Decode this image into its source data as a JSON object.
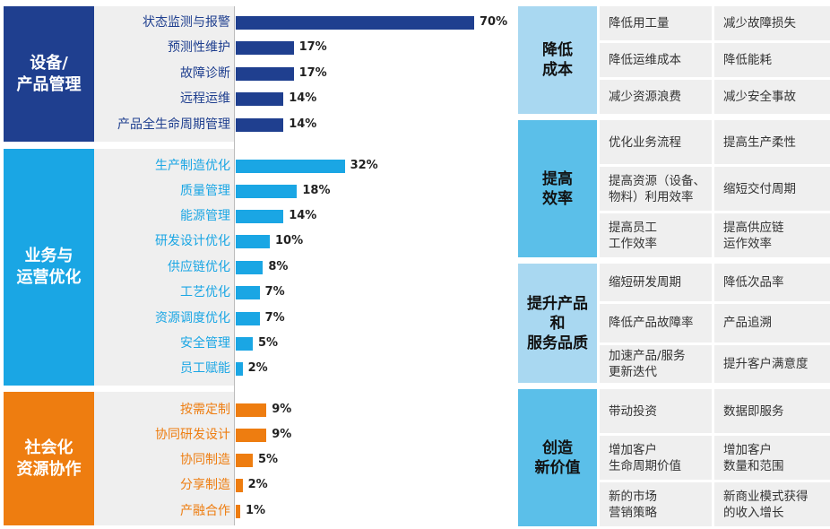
{
  "chart_data": {
    "type": "bar",
    "orientation": "horizontal",
    "groups": [
      {
        "name": "设备/\n产品管理",
        "color": "#1f3f8f",
        "items": [
          {
            "label": "状态监测与报警",
            "value": 70,
            "display": "70%"
          },
          {
            "label": "预测性维护",
            "value": 17,
            "display": "17%"
          },
          {
            "label": "故障诊断",
            "value": 17,
            "display": "17%"
          },
          {
            "label": "远程运维",
            "value": 14,
            "display": "14%"
          },
          {
            "label": "产品全生命周期管理",
            "value": 14,
            "display": "14%"
          }
        ]
      },
      {
        "name": "业务与\n运营优化",
        "color": "#1aa6e4",
        "items": [
          {
            "label": "生产制造优化",
            "value": 32,
            "display": "32%"
          },
          {
            "label": "质量管理",
            "value": 18,
            "display": "18%"
          },
          {
            "label": "能源管理",
            "value": 14,
            "display": "14%"
          },
          {
            "label": "研发设计优化",
            "value": 10,
            "display": "10%"
          },
          {
            "label": "供应链优化",
            "value": 8,
            "display": "8%"
          },
          {
            "label": "工艺优化",
            "value": 7,
            "display": "7%"
          },
          {
            "label": "资源调度优化",
            "value": 7,
            "display": "7%"
          },
          {
            "label": "安全管理",
            "value": 5,
            "display": "5%"
          },
          {
            "label": "员工赋能",
            "value": 2,
            "display": "2%"
          }
        ]
      },
      {
        "name": "社会化\n资源协作",
        "color": "#ee7d10",
        "items": [
          {
            "label": "按需定制",
            "value": 9,
            "display": "9%"
          },
          {
            "label": "协同研发设计",
            "value": 9,
            "display": "9%"
          },
          {
            "label": "协同制造",
            "value": 5,
            "display": "5%"
          },
          {
            "label": "分享制造",
            "value": 2,
            "display": "2%"
          },
          {
            "label": "产融合作",
            "value": 1,
            "display": "1%"
          }
        ]
      }
    ],
    "xlim": [
      0,
      70
    ]
  },
  "benefits": [
    {
      "title": "降低\n成本",
      "style": "light",
      "cells": [
        [
          "降低用工量",
          "减少故障损失"
        ],
        [
          "降低运维成本",
          "降低能耗"
        ],
        [
          "减少资源浪费",
          "减少安全事故"
        ]
      ]
    },
    {
      "title": "提高\n效率",
      "style": "dark",
      "cells": [
        [
          "优化业务流程",
          "提高生产柔性"
        ],
        [
          "提高资源（设备、\n物料）利用效率",
          "缩短交付周期"
        ],
        [
          "提高员工\n工作效率",
          "提高供应链\n运作效率"
        ]
      ]
    },
    {
      "title": "提升产品\n和\n服务品质",
      "style": "light",
      "cells": [
        [
          "缩短研发周期",
          "降低次品率"
        ],
        [
          "降低产品故障率",
          "产品追溯"
        ],
        [
          "加速产品/服务\n更新迭代",
          "提升客户满意度"
        ]
      ]
    },
    {
      "title": "创造\n新价值",
      "style": "dark",
      "cells": [
        [
          "带动投资",
          "数据即服务"
        ],
        [
          "增加客户\n生命周期价值",
          "增加客户\n数量和范围"
        ],
        [
          "新的市场\n营销策略",
          "新商业模式获得\n的收入增长"
        ]
      ]
    }
  ]
}
